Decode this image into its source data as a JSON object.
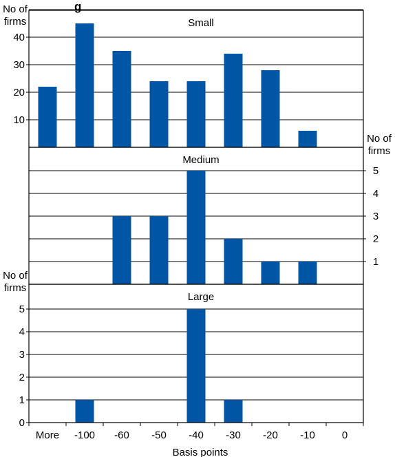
{
  "chart_data": {
    "type": "bar",
    "title_fragment": "g",
    "xlabel": "Basis points",
    "categories": [
      "More",
      "-100",
      "-60",
      "-50",
      "-40",
      "-30",
      "-20",
      "-10",
      "0"
    ],
    "bar_color": "#0055a5",
    "panels": [
      {
        "name": "Small",
        "ylabel": [
          "No of",
          "firms"
        ],
        "axis_side": "left",
        "yticks": [
          10,
          20,
          30,
          40
        ],
        "ylim": [
          0,
          48
        ],
        "values": [
          22,
          45,
          35,
          24,
          24,
          34,
          28,
          6,
          0
        ]
      },
      {
        "name": "Medium",
        "ylabel": [
          "No of",
          "firms"
        ],
        "axis_side": "right",
        "yticks": [
          1,
          2,
          3,
          4,
          5
        ],
        "ylim": [
          0,
          5
        ],
        "values": [
          0,
          0,
          3,
          3,
          5,
          2,
          1,
          1,
          0
        ]
      },
      {
        "name": "Large",
        "ylabel": [
          "No of",
          "firms"
        ],
        "axis_side": "left",
        "yticks": [
          0,
          1,
          2,
          3,
          4,
          5
        ],
        "ylim": [
          0,
          5
        ],
        "values": [
          0,
          1,
          0,
          0,
          5,
          1,
          0,
          0,
          0
        ]
      }
    ]
  }
}
